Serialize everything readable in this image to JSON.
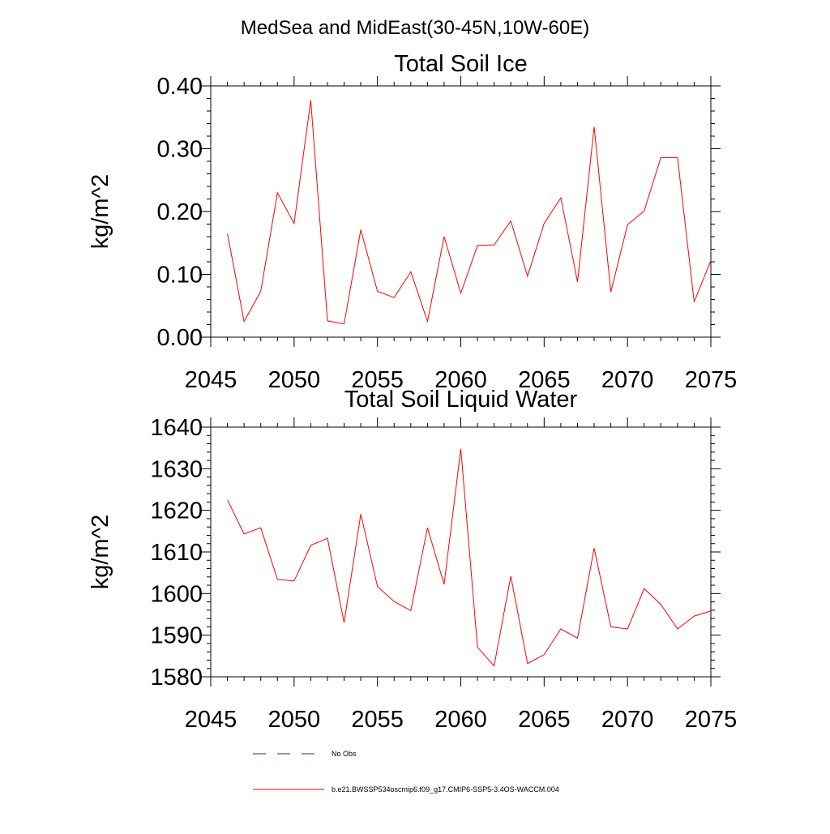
{
  "figure": {
    "title": "MedSea and MidEast(30-45N,10W-60E)"
  },
  "legend": {
    "items": [
      {
        "label": "No Obs",
        "color": "#1f2a8a",
        "style": "dashed"
      },
      {
        "label": "b.e21.BWSSP534oscmip6.f09_g17.CMIP6-SSP5-3.4OS-WACCM.004",
        "color": "#ff0000",
        "style": "solid"
      }
    ]
  },
  "chart_data": [
    {
      "type": "line",
      "title": "Total Soil Ice",
      "xlabel": "",
      "ylabel": "kg/m^2",
      "xlim": [
        2045,
        2075
      ],
      "ylim": [
        0.0,
        0.4
      ],
      "xticks": [
        2045,
        2050,
        2055,
        2060,
        2065,
        2070,
        2075
      ],
      "xtick_labels": [
        "2045",
        "2050",
        "2055",
        "2060",
        "2065",
        "2070",
        "2075"
      ],
      "yticks": [
        0.0,
        0.1,
        0.2,
        0.3,
        0.4
      ],
      "ytick_labels": [
        "0.00",
        "0.10",
        "0.20",
        "0.30",
        "0.40"
      ],
      "grid": false,
      "series": [
        {
          "name": "b.e21.BWSSP534oscmip6.f09_g17.CMIP6-SSP5-3.4OS-WACCM.004",
          "color": "#ff0000",
          "x": [
            2046,
            2047,
            2048,
            2049,
            2050,
            2051,
            2052,
            2053,
            2054,
            2055,
            2056,
            2057,
            2058,
            2059,
            2060,
            2061,
            2062,
            2063,
            2064,
            2065,
            2066,
            2067,
            2068,
            2069,
            2070,
            2071,
            2072,
            2073,
            2074,
            2075
          ],
          "y": [
            0.165,
            0.025,
            0.073,
            0.23,
            0.181,
            0.377,
            0.026,
            0.021,
            0.171,
            0.073,
            0.063,
            0.104,
            0.025,
            0.16,
            0.07,
            0.146,
            0.147,
            0.185,
            0.097,
            0.181,
            0.222,
            0.088,
            0.335,
            0.072,
            0.179,
            0.201,
            0.286,
            0.286,
            0.056,
            0.122
          ]
        }
      ]
    },
    {
      "type": "line",
      "title": "Total Soil Liquid Water",
      "xlabel": "",
      "ylabel": "kg/m^2",
      "xlim": [
        2045,
        2075
      ],
      "ylim": [
        1580,
        1640
      ],
      "xticks": [
        2045,
        2050,
        2055,
        2060,
        2065,
        2070,
        2075
      ],
      "xtick_labels": [
        "2045",
        "2050",
        "2055",
        "2060",
        "2065",
        "2070",
        "2075"
      ],
      "yticks": [
        1580,
        1590,
        1600,
        1610,
        1620,
        1630,
        1640
      ],
      "ytick_labels": [
        "1580",
        "1590",
        "1600",
        "1610",
        "1620",
        "1630",
        "1640"
      ],
      "grid": false,
      "series": [
        {
          "name": "b.e21.BWSSP534oscmip6.f09_g17.CMIP6-SSP5-3.4OS-WACCM.004",
          "color": "#ff0000",
          "x": [
            2046,
            2047,
            2048,
            2049,
            2050,
            2051,
            2052,
            2053,
            2054,
            2055,
            2056,
            2057,
            2058,
            2059,
            2060,
            2061,
            2062,
            2063,
            2064,
            2065,
            2066,
            2067,
            2068,
            2069,
            2070,
            2071,
            2072,
            2073,
            2074,
            2075
          ],
          "y": [
            1622.5,
            1614.3,
            1615.8,
            1603.4,
            1603.0,
            1611.6,
            1613.3,
            1593.0,
            1619.1,
            1601.7,
            1598.1,
            1595.9,
            1615.8,
            1602.2,
            1634.8,
            1587.1,
            1582.6,
            1604.2,
            1583.2,
            1585.3,
            1591.5,
            1589.3,
            1610.9,
            1592.0,
            1591.5,
            1601.2,
            1597.4,
            1591.5,
            1594.6,
            1595.8
          ]
        }
      ]
    }
  ]
}
